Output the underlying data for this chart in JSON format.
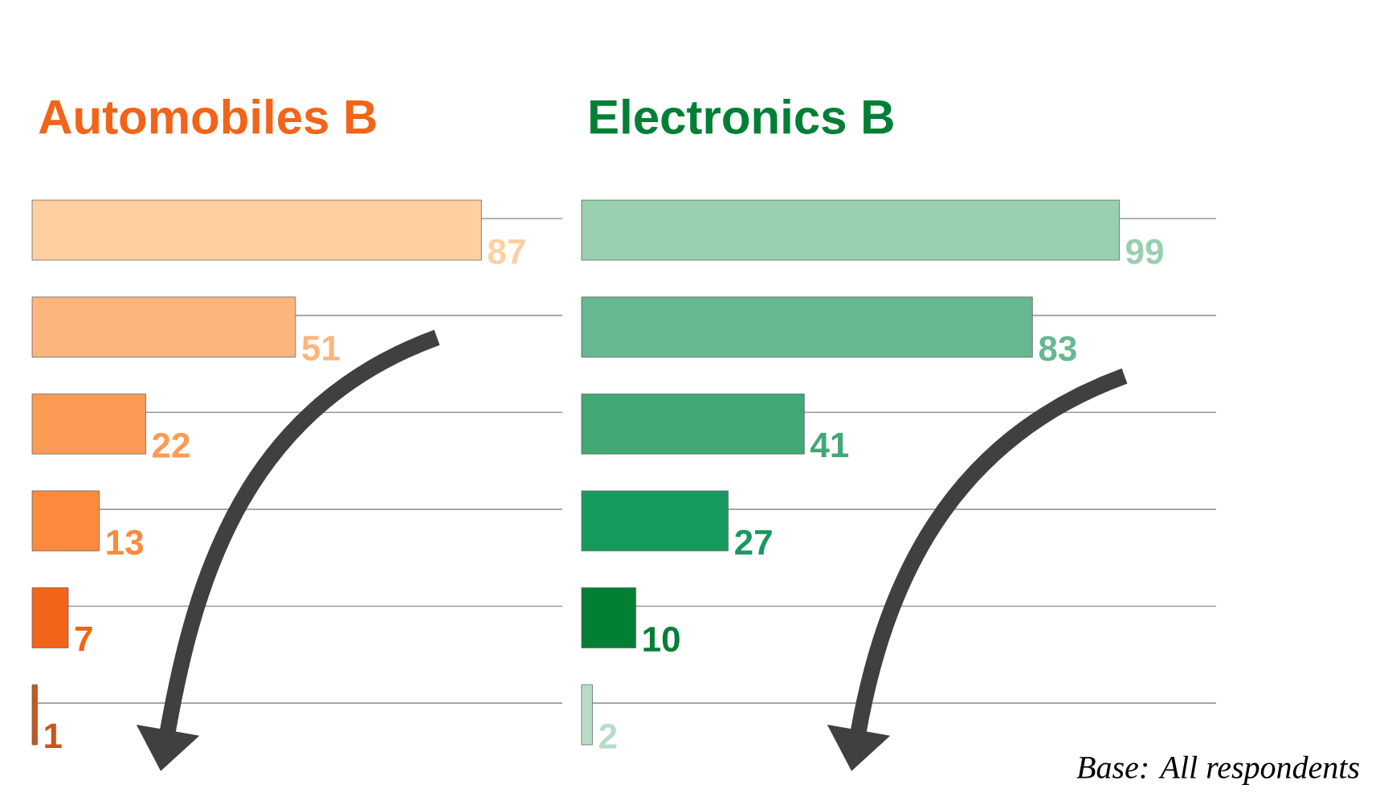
{
  "chart_data": [
    {
      "type": "bar",
      "orientation": "horizontal",
      "title": "Automobiles B",
      "categories": [
        null,
        null,
        null,
        null,
        null,
        null
      ],
      "values": [
        87,
        51,
        22,
        13,
        7,
        1
      ],
      "colors": [
        "#fecfa1",
        "#fdb57e",
        "#fd9b55",
        "#fc8a3e",
        "#f26419",
        "#c8551a"
      ],
      "data_labels": true,
      "grid": "y"
    },
    {
      "type": "bar",
      "orientation": "horizontal",
      "title": "Electronics B",
      "categories": [
        null,
        null,
        null,
        null,
        null,
        null
      ],
      "values": [
        99,
        83,
        41,
        27,
        10,
        2
      ],
      "colors": [
        "#98cfae",
        "#66b890",
        "#41a875",
        "#179a5e",
        "#007f35",
        "#b8dcc6"
      ],
      "data_labels": true,
      "grid": "y",
      "annotations": [
        "Base: All respondents"
      ]
    }
  ]
}
